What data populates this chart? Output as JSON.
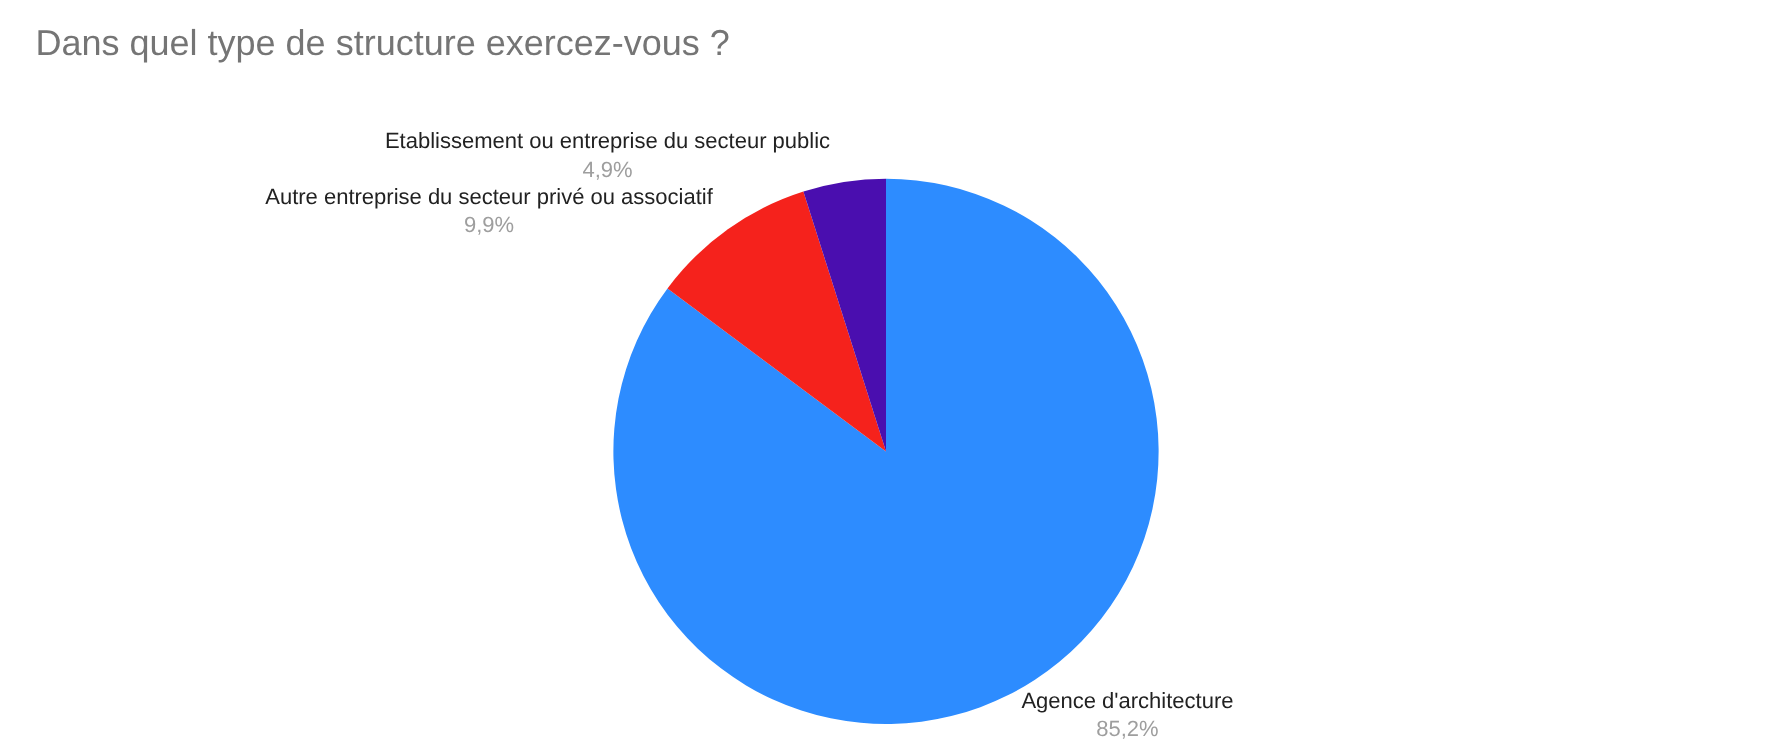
{
  "chart_data": {
    "type": "pie",
    "title": "Dans quel type de structure exercez-vous ?",
    "categories": [
      "Agence d'architecture",
      "Autre entreprise du secteur privé ou associatif",
      "Etablissement ou entreprise du secteur public"
    ],
    "values": [
      85.2,
      9.9,
      4.9
    ],
    "colors": [
      "#2d8cff",
      "#f5221c",
      "#4a0eaf"
    ],
    "value_labels": [
      "85,2%",
      "9,9%",
      "4,9%"
    ],
    "legend": false
  }
}
